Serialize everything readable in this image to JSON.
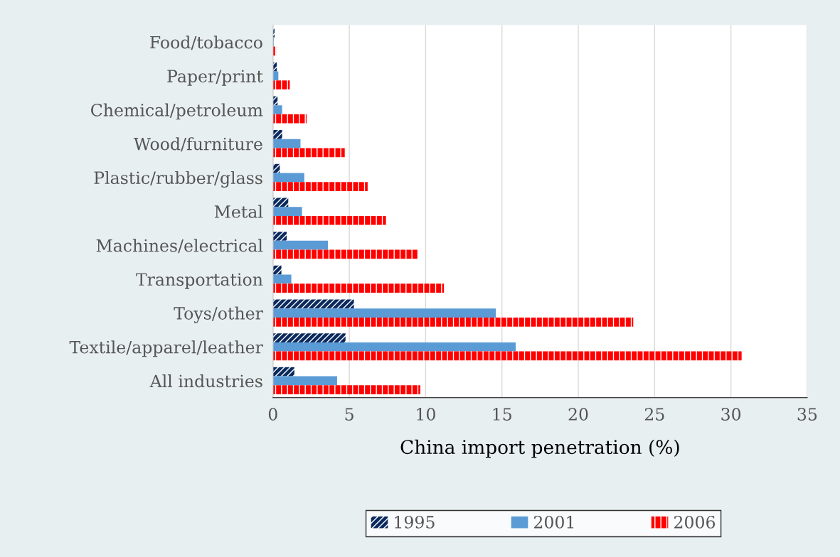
{
  "chart_data": {
    "type": "bar",
    "orientation": "horizontal",
    "xlabel": "China import penetration (%)",
    "categories": [
      "Food/tobacco",
      "Paper/print",
      "Chemical/petroleum",
      "Wood/furniture",
      "Plastic/rubber/glass",
      "Metal",
      "Machines/electrical",
      "Transportation",
      "Toys/other",
      "Textile/apparel/leather",
      "All industries"
    ],
    "series": [
      {
        "name": "1995",
        "color": "#0b2a5e",
        "values": [
          0.1,
          0.25,
          0.3,
          0.6,
          0.45,
          1.0,
          0.9,
          0.55,
          5.3,
          4.75,
          1.4
        ]
      },
      {
        "name": "2001",
        "color": "#5b9bd5",
        "values": [
          0.05,
          0.35,
          0.6,
          1.8,
          2.05,
          1.9,
          3.6,
          1.2,
          14.6,
          15.9,
          4.2
        ]
      },
      {
        "name": "2006",
        "color": "#ff0000",
        "values": [
          0.2,
          1.1,
          2.2,
          4.7,
          6.2,
          7.4,
          9.5,
          11.2,
          23.6,
          30.7,
          9.65
        ]
      }
    ],
    "xlim": [
      0,
      35
    ],
    "xticks": [
      0,
      5,
      10,
      15,
      20,
      25,
      30,
      35
    ],
    "grid": "x",
    "legend": "bottom"
  }
}
